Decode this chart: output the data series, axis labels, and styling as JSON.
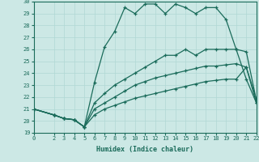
{
  "xlabel": "Humidex (Indice chaleur)",
  "xlim": [
    0,
    22
  ],
  "ylim": [
    19,
    30
  ],
  "xticks": [
    0,
    2,
    3,
    4,
    5,
    6,
    7,
    8,
    9,
    10,
    11,
    12,
    13,
    14,
    15,
    16,
    17,
    18,
    19,
    20,
    21,
    22
  ],
  "yticks": [
    19,
    20,
    21,
    22,
    23,
    24,
    25,
    26,
    27,
    28,
    29,
    30
  ],
  "bg_color": "#cce8e5",
  "line_color": "#1a6b5a",
  "grid_color": "#b0d8d4",
  "lines": [
    {
      "x": [
        0,
        2,
        3,
        4,
        5,
        6,
        7,
        8,
        9,
        10,
        11,
        12,
        13,
        14,
        15,
        16,
        17,
        18,
        19,
        20,
        21,
        22
      ],
      "y": [
        21,
        20.5,
        20.2,
        20.1,
        19.5,
        23.2,
        26.2,
        27.5,
        29.5,
        29,
        29.8,
        29.8,
        29,
        29.8,
        29.5,
        29,
        29.5,
        29.5,
        28.5,
        26,
        23.5,
        21.5
      ]
    },
    {
      "x": [
        0,
        2,
        3,
        4,
        5,
        6,
        7,
        8,
        9,
        10,
        11,
        12,
        13,
        14,
        15,
        16,
        17,
        18,
        19,
        20,
        21,
        22
      ],
      "y": [
        21,
        20.5,
        20.2,
        20.1,
        19.5,
        21.5,
        22.3,
        23.0,
        23.5,
        24.0,
        24.5,
        25.0,
        25.5,
        25.5,
        26.0,
        25.5,
        26.0,
        26.0,
        26.0,
        26.0,
        25.8,
        21.7
      ]
    },
    {
      "x": [
        0,
        2,
        3,
        4,
        5,
        6,
        7,
        8,
        9,
        10,
        11,
        12,
        13,
        14,
        15,
        16,
        17,
        18,
        19,
        20,
        21,
        22
      ],
      "y": [
        21,
        20.5,
        20.2,
        20.1,
        19.5,
        21.0,
        21.5,
        22.0,
        22.5,
        23.0,
        23.3,
        23.6,
        23.8,
        24.0,
        24.2,
        24.4,
        24.6,
        24.6,
        24.7,
        24.8,
        24.5,
        21.8
      ]
    },
    {
      "x": [
        0,
        2,
        3,
        4,
        5,
        6,
        7,
        8,
        9,
        10,
        11,
        12,
        13,
        14,
        15,
        16,
        17,
        18,
        19,
        20,
        21,
        22
      ],
      "y": [
        21,
        20.5,
        20.2,
        20.1,
        19.5,
        20.5,
        21.0,
        21.3,
        21.6,
        21.9,
        22.1,
        22.3,
        22.5,
        22.7,
        22.9,
        23.1,
        23.3,
        23.4,
        23.5,
        23.5,
        24.5,
        21.5
      ]
    }
  ]
}
